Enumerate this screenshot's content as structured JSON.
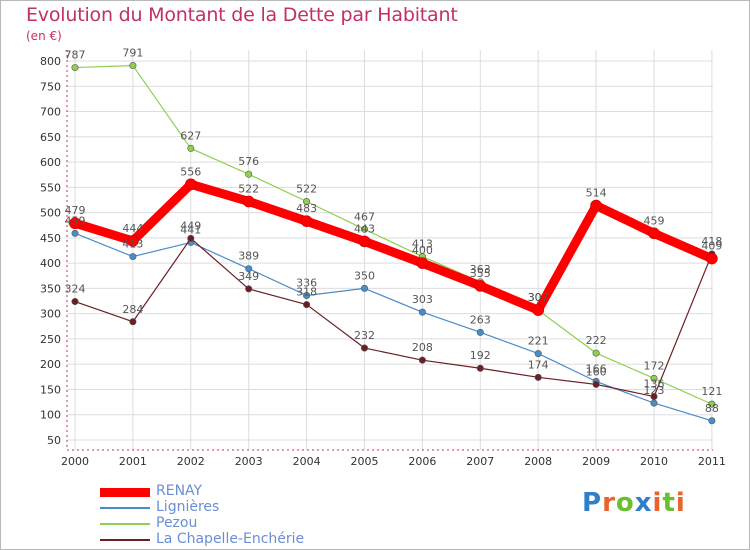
{
  "header": {
    "title": "Evolution du Montant de la Dette par Habitant",
    "subtitle": "(en €)"
  },
  "logo": {
    "letters": [
      "P",
      "r",
      "o",
      "x",
      "i",
      "t",
      "i"
    ],
    "colors": [
      "#2f80c8",
      "#e8642c",
      "#6abf2e",
      "#2f80c8",
      "#e8642c",
      "#6abf2e",
      "#e8642c"
    ]
  },
  "chart_data": {
    "type": "line",
    "x": [
      "2000",
      "2001",
      "2002",
      "2003",
      "2004",
      "2005",
      "2006",
      "2007",
      "2008",
      "2009",
      "2010",
      "2011"
    ],
    "ylim": [
      50,
      800
    ],
    "yticks": [
      "50",
      "100",
      "150",
      "200",
      "250",
      "300",
      "350",
      "400",
      "450",
      "500",
      "550",
      "600",
      "650",
      "700",
      "750",
      "800"
    ],
    "grid": true,
    "legend_position": "bottom-left",
    "series": [
      {
        "name": "Lignières",
        "color": "#4a8cc8",
        "values": [
          459,
          413,
          441,
          389,
          336,
          350,
          303,
          263,
          221,
          166,
          123,
          88
        ]
      },
      {
        "name": "Pezou",
        "color": "#8fd050",
        "values": [
          787,
          791,
          627,
          576,
          522,
          467,
          413,
          363,
          307,
          222,
          172,
          121
        ]
      },
      {
        "name": "La Chapelle-Enchérie",
        "color": "#6a1f24",
        "values": [
          324,
          284,
          449,
          349,
          318,
          232,
          208,
          192,
          174,
          160,
          136,
          418
        ]
      },
      {
        "name": "RENAY",
        "color": "#ff0000",
        "values": [
          479,
          444,
          556,
          522,
          483,
          443,
          400,
          355,
          307,
          514,
          459,
          409
        ]
      }
    ]
  }
}
